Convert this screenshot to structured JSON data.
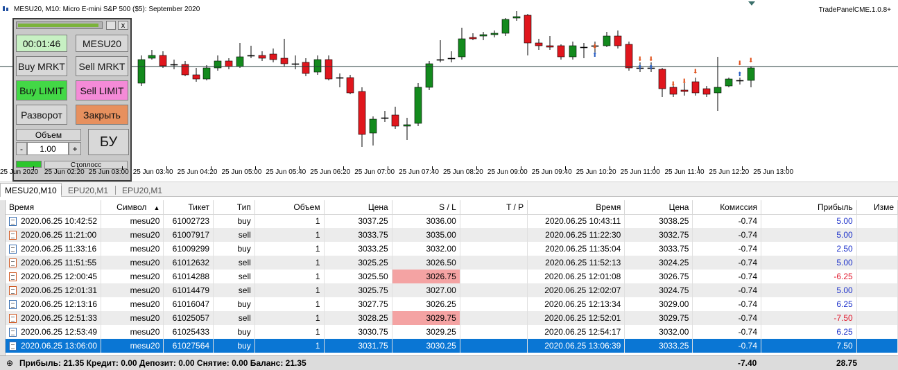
{
  "chart": {
    "title": "MESU20, M10:  Micro E-mini S&P 500 ($5): September 2020",
    "tag": "TradePanelCME.1.0.8+",
    "time_ticks": [
      "25 Jun 2020",
      "25 Jun 02:20",
      "25 Jun 03:00",
      "25 Jun 03:40",
      "25 Jun 04:20",
      "25 Jun 05:00",
      "25 Jun 05:40",
      "25 Jun 06:20",
      "25 Jun 07:00",
      "25 Jun 07:40",
      "25 Jun 08:20",
      "25 Jun 09:00",
      "25 Jun 09:40",
      "25 Jun 10:20",
      "25 Jun 11:00",
      "25 Jun 11:40",
      "25 Jun 12:20",
      "25 Jun 13:00"
    ],
    "colors": {
      "bull": "#138a1d",
      "bear": "#e0161d",
      "wick": "#000000"
    }
  },
  "panel": {
    "timer": "00:01:46",
    "symbol": "MESU20",
    "buy_market": "Buy MRKT",
    "sell_market": "Sell MRKT",
    "buy_limit": "Buy LIMIT",
    "sell_limit": "Sell LIMIT",
    "reverse": "Разворот",
    "close": "Закрыть",
    "volume_label": "Объем",
    "volume_value": "1.00",
    "minus": "-",
    "plus": "+",
    "breakeven": "БУ",
    "stoploss": "Стоплосс",
    "close_x": "x"
  },
  "tabs": [
    {
      "label": "MESU20,M10",
      "active": true
    },
    {
      "label": "EPU20,M1",
      "active": false
    },
    {
      "label": "EPU20,M1",
      "active": false
    }
  ],
  "table": {
    "headers": [
      "Время",
      "Символ",
      "Тикет",
      "Тип",
      "Объем",
      "Цена",
      "S / L",
      "T / P",
      "Время",
      "Цена",
      "Комиссия",
      "Прибыль",
      "Изме"
    ],
    "sort_indicator": "▲",
    "rows": [
      {
        "open_time": "2020.06.25 10:42:52",
        "symbol": "mesu20",
        "ticket": "61002723",
        "type": "buy",
        "volume": "1",
        "price": "3037.25",
        "sl": "3036.00",
        "tp": "",
        "close_time": "2020.06.25 10:43:11",
        "close_price": "3038.25",
        "commission": "-0.74",
        "profit": "5.00",
        "sl_hit": false
      },
      {
        "open_time": "2020.06.25 11:21:00",
        "symbol": "mesu20",
        "ticket": "61007917",
        "type": "sell",
        "volume": "1",
        "price": "3033.75",
        "sl": "3035.00",
        "tp": "",
        "close_time": "2020.06.25 11:22:30",
        "close_price": "3032.75",
        "commission": "-0.74",
        "profit": "5.00",
        "sl_hit": false
      },
      {
        "open_time": "2020.06.25 11:33:16",
        "symbol": "mesu20",
        "ticket": "61009299",
        "type": "buy",
        "volume": "1",
        "price": "3033.25",
        "sl": "3032.00",
        "tp": "",
        "close_time": "2020.06.25 11:35:04",
        "close_price": "3033.75",
        "commission": "-0.74",
        "profit": "2.50",
        "sl_hit": false
      },
      {
        "open_time": "2020.06.25 11:51:55",
        "symbol": "mesu20",
        "ticket": "61012632",
        "type": "sell",
        "volume": "1",
        "price": "3025.25",
        "sl": "3026.50",
        "tp": "",
        "close_time": "2020.06.25 11:52:13",
        "close_price": "3024.25",
        "commission": "-0.74",
        "profit": "5.00",
        "sl_hit": false
      },
      {
        "open_time": "2020.06.25 12:00:45",
        "symbol": "mesu20",
        "ticket": "61014288",
        "type": "sell",
        "volume": "1",
        "price": "3025.50",
        "sl": "3026.75",
        "tp": "",
        "close_time": "2020.06.25 12:01:08",
        "close_price": "3026.75",
        "commission": "-0.74",
        "profit": "-6.25",
        "sl_hit": true
      },
      {
        "open_time": "2020.06.25 12:01:31",
        "symbol": "mesu20",
        "ticket": "61014479",
        "type": "sell",
        "volume": "1",
        "price": "3025.75",
        "sl": "3027.00",
        "tp": "",
        "close_time": "2020.06.25 12:02:07",
        "close_price": "3024.75",
        "commission": "-0.74",
        "profit": "5.00",
        "sl_hit": false
      },
      {
        "open_time": "2020.06.25 12:13:16",
        "symbol": "mesu20",
        "ticket": "61016047",
        "type": "buy",
        "volume": "1",
        "price": "3027.75",
        "sl": "3026.25",
        "tp": "",
        "close_time": "2020.06.25 12:13:34",
        "close_price": "3029.00",
        "commission": "-0.74",
        "profit": "6.25",
        "sl_hit": false
      },
      {
        "open_time": "2020.06.25 12:51:33",
        "symbol": "mesu20",
        "ticket": "61025057",
        "type": "sell",
        "volume": "1",
        "price": "3028.25",
        "sl": "3029.75",
        "tp": "",
        "close_time": "2020.06.25 12:52:01",
        "close_price": "3029.75",
        "commission": "-0.74",
        "profit": "-7.50",
        "sl_hit": true
      },
      {
        "open_time": "2020.06.25 12:53:49",
        "symbol": "mesu20",
        "ticket": "61025433",
        "type": "buy",
        "volume": "1",
        "price": "3030.75",
        "sl": "3029.25",
        "tp": "",
        "close_time": "2020.06.25 12:54:17",
        "close_price": "3032.00",
        "commission": "-0.74",
        "profit": "6.25",
        "sl_hit": false
      },
      {
        "open_time": "2020.06.25 13:06:00",
        "symbol": "mesu20",
        "ticket": "61027564",
        "type": "buy",
        "volume": "1",
        "price": "3031.75",
        "sl": "3030.25",
        "tp": "",
        "close_time": "2020.06.25 13:06:39",
        "close_price": "3033.25",
        "commission": "-0.74",
        "profit": "7.50",
        "sl_hit": false,
        "selected": true
      }
    ]
  },
  "summary": {
    "text": "Прибыль: 21.35  Кредит: 0.00  Депозит: 0.00  Снятие: 0.00  Баланс: 21.35",
    "commission_total": "-7.40",
    "profit_total": "28.75"
  }
}
